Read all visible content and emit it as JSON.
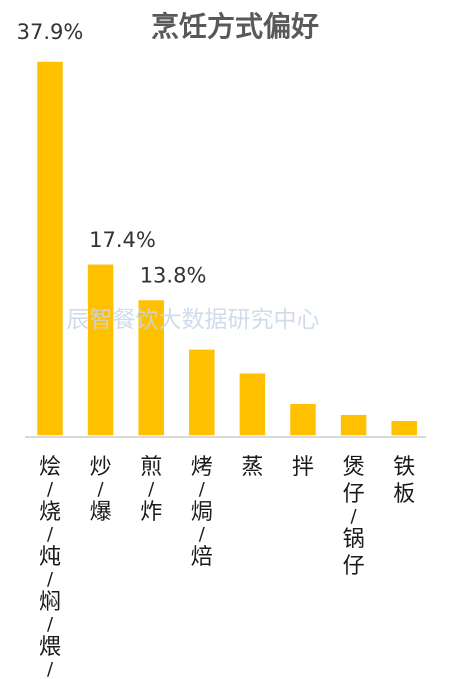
{
  "chart_data": {
    "type": "bar",
    "title": "烹饪方式偏好",
    "categories": [
      "烩/烧/炖/焖/煨/煮",
      "炒/爆",
      "煎/炸",
      "烤/焗/焙",
      "蒸",
      "拌",
      "煲仔/锅仔",
      "铁板"
    ],
    "values": [
      37.9,
      17.4,
      13.8,
      8.8,
      6.4,
      3.3,
      2.2,
      1.6
    ],
    "data_labels": [
      "37.9%",
      "17.4%",
      "13.8%",
      "",
      "",
      "",
      "",
      ""
    ],
    "xlabel": "",
    "ylabel": "",
    "ylim": [
      0,
      37.9
    ],
    "grid": false,
    "legend": "none",
    "bar_color": "#FFC000",
    "axis_color": "#d9d9d9"
  },
  "watermark": "辰智餐饮大数据研究中心"
}
